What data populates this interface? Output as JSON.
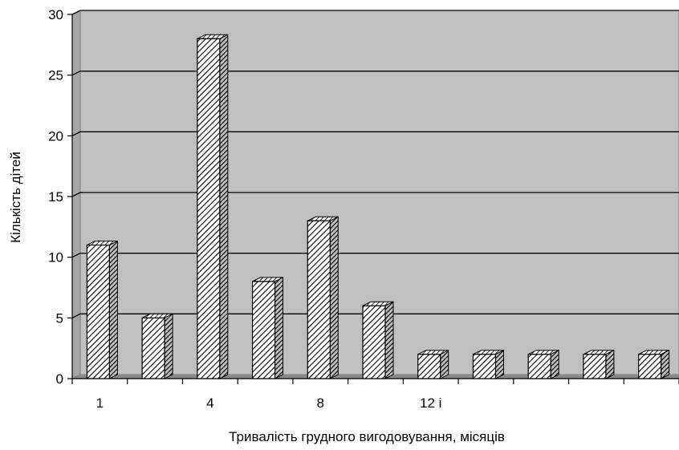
{
  "chart_data": {
    "type": "bar",
    "title": "",
    "xlabel": "Тривалість грудного вигодовування, місяців",
    "ylabel": "Кількість дітей",
    "ylim": [
      0,
      30
    ],
    "yticks": [
      0,
      5,
      10,
      15,
      20,
      25,
      30
    ],
    "grid": true,
    "categories": [
      "1",
      "",
      "4",
      "",
      "8",
      "",
      "12 і",
      "",
      "",
      "",
      ""
    ],
    "values": [
      11,
      5,
      28,
      8,
      13,
      6,
      2,
      2,
      2,
      2,
      2
    ],
    "colors": {
      "plot_background": "#c0c0c0",
      "bar_fill": "#ffffff",
      "bar_hatch": "#000000",
      "gridline": "#000000"
    }
  }
}
